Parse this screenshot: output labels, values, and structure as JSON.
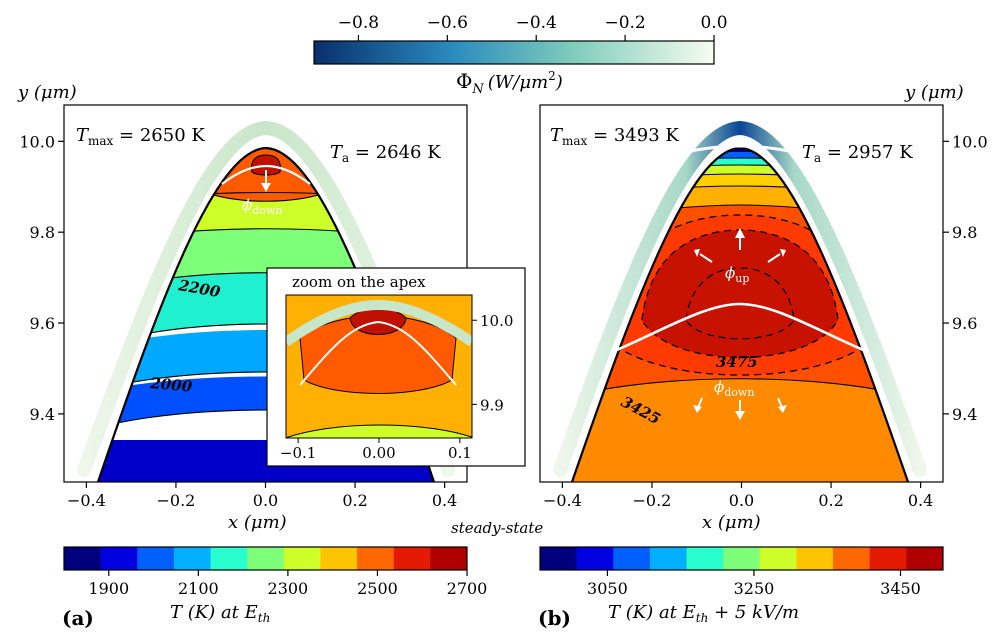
{
  "figure": {
    "top_colorbar": {
      "label_sym": "Φ",
      "label_sub": "N",
      "label_units": "(W/μm",
      "label_units_exp": "2",
      "label_units_close": ")",
      "ticks": [
        "−0.8",
        "−0.6",
        "−0.4",
        "−0.2",
        "0.0"
      ],
      "colors": [
        "#08306b",
        "#2b8cbe",
        "#7fcdbb",
        "#f7fcf0"
      ]
    },
    "steady_state_label": "steady-state",
    "panel_a": {
      "tag": "(a)",
      "tmax_base": "T",
      "tmax_sub": "max",
      "tmax_value": " = 2650 K",
      "ta_base": "T",
      "ta_sub": "a",
      "ta_value": " = 2646 K",
      "phi_down": "ϕ",
      "phi_down_sub": "down",
      "contour_labels": [
        "2200",
        "2000"
      ],
      "xlabel": "x (μm)",
      "ylabel": "y (μm)",
      "xticks": [
        "−0.4",
        "−0.2",
        "0.0",
        "0.2",
        "0.4"
      ],
      "yticks": [
        "10.0",
        "9.8",
        "9.6",
        "9.4"
      ],
      "inset": {
        "title": "zoom on the apex",
        "xticks": [
          "−0.1",
          "0.00",
          "0.1"
        ],
        "yticks": [
          "10.0",
          "9.9"
        ]
      },
      "colorbar": {
        "label": "T (K) at E",
        "label_sub": "th",
        "ticks": [
          "1900",
          "2100",
          "2300",
          "2500",
          "2700"
        ],
        "colors": [
          "#00007f",
          "#0000e0",
          "#0060ff",
          "#00b0ff",
          "#29ffce",
          "#7dff7a",
          "#ceff29",
          "#ffc400",
          "#ff6800",
          "#e41a00",
          "#b00000"
        ]
      }
    },
    "panel_b": {
      "tag": "(b)",
      "tmax_base": "T",
      "tmax_sub": "max",
      "tmax_value": " = 3493 K",
      "ta_base": "T",
      "ta_sub": "a",
      "ta_value": " = 2957 K",
      "phi_up": "ϕ",
      "phi_up_sub": "up",
      "phi_down": "ϕ",
      "phi_down_sub": "down",
      "contour_labels": [
        "3475",
        "3425"
      ],
      "xlabel": "x (μm)",
      "ylabel": "y (μm)",
      "xticks": [
        "−0.4",
        "−0.2",
        "0.0",
        "0.2",
        "0.4"
      ],
      "yticks": [
        "10.0",
        "9.8",
        "9.6",
        "9.4"
      ],
      "colorbar": {
        "label": "T (K) at E",
        "label_sub": "th",
        "label_extra": " + 5 kV/m",
        "ticks": [
          "3050",
          "3250",
          "3450"
        ],
        "colors": [
          "#00007f",
          "#0000e0",
          "#0060ff",
          "#00b0ff",
          "#29ffce",
          "#7dff7a",
          "#ceff29",
          "#ffc400",
          "#ff6800",
          "#e41a00",
          "#b00000"
        ]
      }
    }
  },
  "chart_data": [
    {
      "type": "heatmap",
      "panel": "a",
      "title": "",
      "xlabel": "x (μm)",
      "ylabel": "y (μm)",
      "xlim": [
        -0.45,
        0.45
      ],
      "ylim": [
        9.25,
        10.08
      ],
      "contour_levels_K": [
        1800,
        1900,
        2000,
        2100,
        2200,
        2300,
        2400,
        2500,
        2600,
        2650
      ],
      "labeled_contours": [
        2200,
        2000
      ],
      "T_max_K": 2650,
      "T_a_K": 2646,
      "colorbar_range_K": [
        1800,
        2700
      ]
    },
    {
      "type": "heatmap",
      "panel": "b",
      "title": "",
      "xlabel": "x (μm)",
      "ylabel": "y (μm)",
      "xlim": [
        -0.45,
        0.45
      ],
      "ylim": [
        9.25,
        10.08
      ],
      "labeled_contours": [
        3475,
        3425
      ],
      "T_max_K": 3493,
      "T_a_K": 2957,
      "colorbar_range_K": [
        2950,
        3500
      ]
    }
  ]
}
